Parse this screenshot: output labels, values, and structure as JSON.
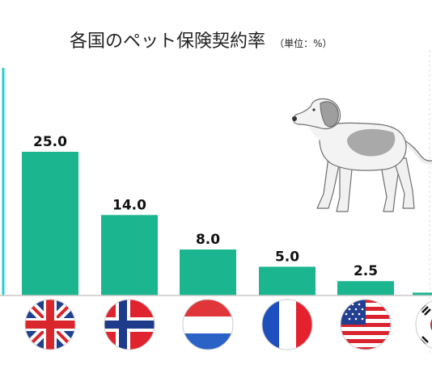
{
  "chart_data": {
    "type": "bar",
    "title": "各国のペット保険契約率",
    "unit": "（単位：%）",
    "categories": [
      "イギリス",
      "ノルウェー",
      "オランダ",
      "フランス",
      "アメリカ",
      "韓国"
    ],
    "values": [
      25.0,
      14.0,
      8.0,
      5.0,
      2.5,
      0.5
    ],
    "value_labels": [
      "25.0",
      "14.0",
      "8.0",
      "5.0",
      "2.5",
      ""
    ],
    "ylim": [
      0,
      32
    ],
    "grid": false,
    "bar_color": "#1bb58f",
    "axis_color": "#26d0d0"
  },
  "flags": [
    "uk-flag-icon",
    "norway-flag-icon",
    "netherlands-flag-icon",
    "france-flag-icon",
    "usa-flag-icon",
    "korea-flag-icon"
  ],
  "decoration": "dog-illustration"
}
